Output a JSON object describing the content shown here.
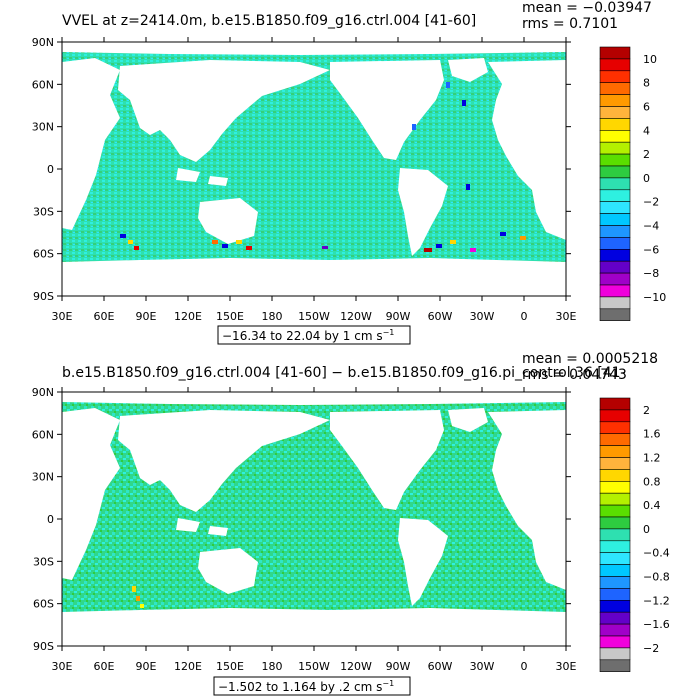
{
  "colors": {
    "ocean_base": "#2ee0b0",
    "land": "#ffffff",
    "frame": "#000000"
  },
  "panels": [
    {
      "title": "VVEL at z=2414.0m, b.e15.B1850.f09_g16.ctrl.004 [41-60]",
      "mean_text": "mean = −0.03947",
      "rms_text": "rms = 0.7101",
      "range_text": "−16.34 to 22.04 by 1 cm s",
      "range_exp": "−1",
      "colorbar": {
        "labels": [
          "10",
          "8",
          "6",
          "4",
          "2",
          "0",
          "−2",
          "−4",
          "−6",
          "−8",
          "−10"
        ],
        "colors": [
          "#b40000",
          "#e60000",
          "#ff3000",
          "#ff6a00",
          "#ff9a00",
          "#ffb43c",
          "#ffd700",
          "#ffff00",
          "#b4f000",
          "#5ade00",
          "#2ecc40",
          "#2ee0b0",
          "#2ef0e0",
          "#2ee6ff",
          "#00c8ff",
          "#1e96ff",
          "#1e64ff",
          "#0000e0",
          "#6400c8",
          "#a000c8",
          "#f000dc",
          "#c8c8c8",
          "#6e6e6e"
        ]
      }
    },
    {
      "title": "b.e15.B1850.f09_g16.ctrl.004 [41-60] − b.e15.B1850.f09_g16.pi_control.36 [41-",
      "mean_text": "mean = 0.0005218",
      "rms_text": "rms = 0.04743",
      "range_text": "−1.502 to 1.164 by .2 cm s",
      "range_exp": "−1",
      "colorbar": {
        "labels": [
          "2",
          "1.6",
          "1.2",
          "0.8",
          "0.4",
          "0",
          "−0.4",
          "−0.8",
          "−1.2",
          "−1.6",
          "−2"
        ],
        "colors": [
          "#b40000",
          "#e60000",
          "#ff3000",
          "#ff6a00",
          "#ff9a00",
          "#ffb43c",
          "#ffd700",
          "#ffff00",
          "#b4f000",
          "#5ade00",
          "#2ecc40",
          "#2ee0b0",
          "#2ef0e0",
          "#2ee6ff",
          "#00c8ff",
          "#1e96ff",
          "#1e64ff",
          "#0000e0",
          "#6400c8",
          "#a000c8",
          "#f000dc",
          "#c8c8c8",
          "#6e6e6e"
        ]
      }
    }
  ],
  "axes": {
    "lat_labels": [
      "90N",
      "60N",
      "30N",
      "0",
      "30S",
      "60S",
      "90S"
    ],
    "lon_labels": [
      "30E",
      "60E",
      "90E",
      "120E",
      "150E",
      "180",
      "150W",
      "120W",
      "90W",
      "60W",
      "30W",
      "0",
      "30E"
    ]
  }
}
